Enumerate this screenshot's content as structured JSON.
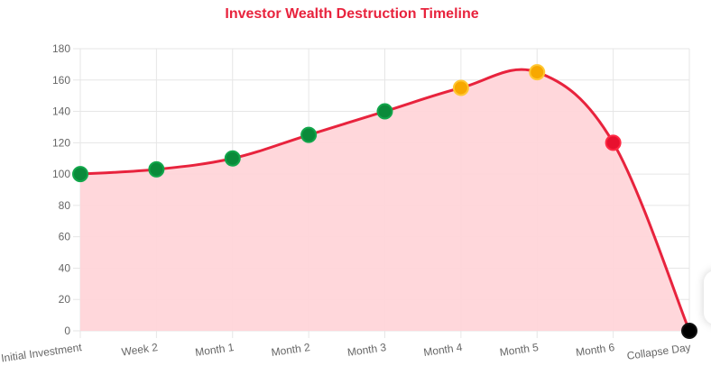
{
  "chart_data": {
    "type": "line",
    "title": "Investor Wealth Destruction Timeline",
    "categories": [
      "Initial Investment",
      "Week 2",
      "Month 1",
      "Month 2",
      "Month 3",
      "Month 4",
      "Month 5",
      "Month 6",
      "Collapse Day"
    ],
    "series": [
      {
        "values": [
          100,
          103,
          110,
          125,
          140,
          155,
          165,
          120,
          0
        ],
        "point_colors": [
          "#0a8a3a",
          "#0a8a3a",
          "#0a8a3a",
          "#0a8a3a",
          "#0a8a3a",
          "#f7a800",
          "#f7a800",
          "#e8102e",
          "#000000"
        ],
        "line_color": "#e8233d",
        "fill_color": "#ffd5d9"
      }
    ],
    "ylim": [
      0,
      180
    ],
    "yticks": [
      "0",
      "20",
      "40",
      "60",
      "80",
      "100",
      "120",
      "140",
      "160",
      "180"
    ],
    "grid": true,
    "xlabel": "",
    "ylabel": "",
    "title_color": "#e8233d",
    "point_border_colors": [
      "#12a64b",
      "#12a64b",
      "#12a64b",
      "#12a64b",
      "#12a64b",
      "#ffc733",
      "#ffc733",
      "#ff2a45",
      "#111111"
    ]
  }
}
